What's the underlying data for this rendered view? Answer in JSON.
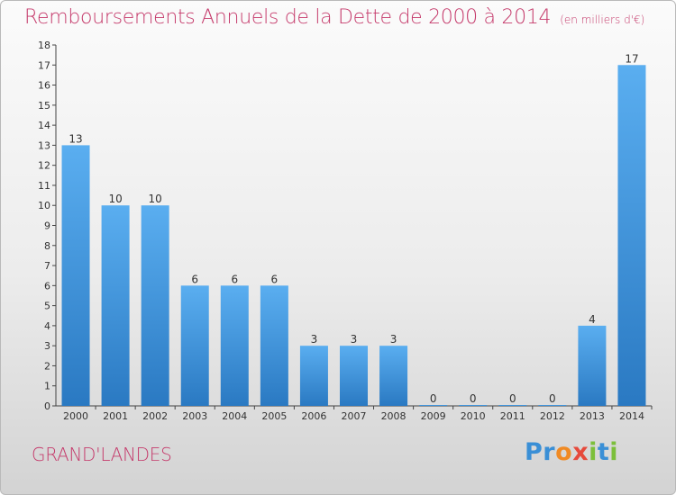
{
  "header": {
    "title": "Remboursements Annuels de la Dette de 2000 à 2014",
    "subtitle": "(en milliers d'€)"
  },
  "footer": {
    "commune": "GRAND'LANDES",
    "logo_letters": [
      {
        "char": "P",
        "color": "#3a8fd6"
      },
      {
        "char": "r",
        "color": "#3a8fd6"
      },
      {
        "char": "o",
        "color": "#f08a24"
      },
      {
        "char": "x",
        "color": "#e64a3c"
      },
      {
        "char": "i",
        "color": "#7cbf3b"
      },
      {
        "char": "t",
        "color": "#3a8fd6"
      },
      {
        "char": "i",
        "color": "#7cbf3b"
      }
    ]
  },
  "colors": {
    "bar_light": "#5aaef0",
    "bar_dark": "#2a79c2",
    "title": "#c53a6b"
  },
  "chart_data": {
    "type": "bar",
    "title": "Remboursements Annuels de la Dette de 2000 à 2014",
    "subtitle": "(en milliers d'€)",
    "xlabel": "",
    "ylabel": "",
    "categories": [
      "2000",
      "2001",
      "2002",
      "2003",
      "2004",
      "2005",
      "2006",
      "2007",
      "2008",
      "2009",
      "2010",
      "2011",
      "2012",
      "2013",
      "2014"
    ],
    "values": [
      13,
      10,
      10,
      6,
      6,
      6,
      3,
      3,
      3,
      0,
      0,
      0,
      0,
      4,
      17
    ],
    "ylim": [
      0,
      18
    ],
    "yticks": [
      0,
      1,
      2,
      3,
      4,
      5,
      6,
      7,
      8,
      9,
      10,
      11,
      12,
      13,
      14,
      15,
      16,
      17,
      18
    ],
    "grid": false,
    "data_labels": true
  }
}
